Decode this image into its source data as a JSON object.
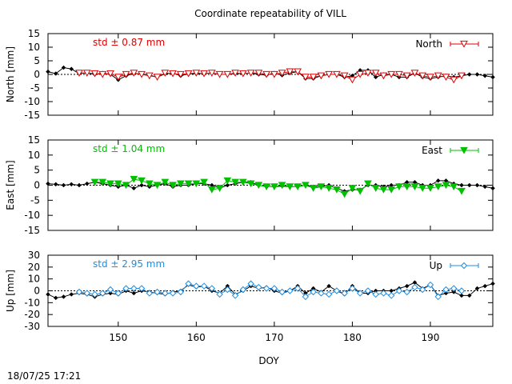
{
  "title": "Coordinate repeatability of VILL",
  "timestamp": "18/07/25 17:21",
  "xlabel": "DOY",
  "chart_data": [
    {
      "type": "line",
      "ylabel": "North [mm]",
      "ylim": [
        -15,
        15
      ],
      "yticks": [
        15,
        10,
        5,
        0,
        -5,
        -10,
        -15
      ],
      "xlim": [
        141,
        198
      ],
      "xticks": [
        150,
        160,
        170,
        180,
        190
      ],
      "tick_labels_x_visible": false,
      "annotation": "std ± 0.87 mm",
      "annotation_color": "#e00000",
      "legend": "North",
      "legend_position": "top-right",
      "series_color": "#e00000",
      "marker": "triangle-down-open",
      "baseline": {
        "x": [
          141,
          142,
          143,
          144,
          145,
          146,
          147,
          148,
          149,
          150,
          151,
          152,
          153,
          154,
          155,
          156,
          157,
          158,
          159,
          160,
          161,
          162,
          163,
          164,
          165,
          166,
          167,
          168,
          169,
          170,
          171,
          172,
          173,
          174,
          175,
          176,
          177,
          178,
          179,
          180,
          181,
          182,
          183,
          184,
          185,
          186,
          187,
          188,
          189,
          190,
          191,
          192,
          193,
          194,
          195,
          196,
          197,
          198
        ],
        "y": [
          1,
          0.3,
          2.5,
          2,
          0.3,
          0.5,
          0,
          0.5,
          0,
          -2,
          -0.5,
          0.3,
          0.2,
          -0.3,
          -1,
          0.2,
          0.5,
          -0.5,
          0.2,
          0.3,
          0.3,
          0.5,
          0,
          0,
          0.3,
          0.3,
          0.5,
          0,
          -0.3,
          0.5,
          -0.3,
          0.5,
          1,
          -1.5,
          -1.5,
          -0.5,
          0,
          0,
          -1,
          -0.5,
          1.5,
          1.5,
          -1,
          0,
          0,
          -1,
          -1,
          0.5,
          -1,
          -1.5,
          -1,
          -0.5,
          -1,
          -0.5,
          0,
          0,
          -0.5,
          -1
        ]
      },
      "series": [
        {
          "name": "North",
          "x": [
            145,
            146,
            147,
            148,
            149,
            150,
            151,
            152,
            153,
            154,
            155,
            156,
            157,
            158,
            159,
            160,
            161,
            162,
            163,
            164,
            165,
            166,
            167,
            168,
            169,
            170,
            171,
            172,
            173,
            174,
            175,
            176,
            177,
            178,
            179,
            180,
            181,
            182,
            183,
            184,
            185,
            186,
            187,
            188,
            189,
            190,
            191,
            192,
            193,
            194
          ],
          "y": [
            0.5,
            0.5,
            0.3,
            0,
            0.3,
            -1,
            0,
            0.5,
            0,
            -0.5,
            -1,
            0.5,
            0.3,
            0,
            0.3,
            0.5,
            0.3,
            0.5,
            0,
            0,
            0.5,
            0.3,
            0.5,
            0.5,
            0,
            0,
            0.5,
            1,
            1,
            -1,
            -1,
            -0.5,
            0,
            0,
            -0.5,
            -2,
            0,
            0.5,
            0.5,
            -0.5,
            0,
            0,
            -0.5,
            0.5,
            -0.5,
            -1,
            -0.5,
            -1,
            -2,
            -0.5
          ]
        }
      ]
    },
    {
      "type": "line",
      "ylabel": "East [mm]",
      "ylim": [
        -15,
        15
      ],
      "yticks": [
        15,
        10,
        5,
        0,
        -5,
        -10,
        -15
      ],
      "xlim": [
        141,
        198
      ],
      "xticks": [
        150,
        160,
        170,
        180,
        190
      ],
      "tick_labels_x_visible": false,
      "annotation": "std ± 1.04 mm",
      "annotation_color": "#00c000",
      "legend": "East",
      "legend_position": "top-right",
      "series_color": "#00c000",
      "marker": "triangle-down-filled",
      "baseline": {
        "x": [
          141,
          142,
          143,
          144,
          145,
          146,
          147,
          148,
          149,
          150,
          151,
          152,
          153,
          154,
          155,
          156,
          157,
          158,
          159,
          160,
          161,
          162,
          163,
          164,
          165,
          166,
          167,
          168,
          169,
          170,
          171,
          172,
          173,
          174,
          175,
          176,
          177,
          178,
          179,
          180,
          181,
          182,
          183,
          184,
          185,
          186,
          187,
          188,
          189,
          190,
          191,
          192,
          193,
          194,
          195,
          196,
          197,
          198
        ],
        "y": [
          0.5,
          0.3,
          0,
          0.3,
          0,
          0.5,
          1,
          0.5,
          0,
          -0.5,
          0,
          -1,
          0,
          -0.5,
          0,
          0.5,
          -0.5,
          0,
          0,
          0.5,
          0.5,
          0,
          -1,
          0,
          0.5,
          1,
          1,
          0,
          -0.5,
          -0.5,
          -0.3,
          -0.5,
          -0.5,
          0,
          -0.5,
          -0.5,
          0,
          -1,
          -2,
          -1.5,
          -1.5,
          0,
          0,
          -0.5,
          0,
          0,
          1,
          1,
          0,
          0,
          1.5,
          1.5,
          0.5,
          0,
          0,
          0,
          -0.5,
          -1
        ]
      },
      "series": [
        {
          "name": "East",
          "x": [
            147,
            148,
            149,
            150,
            151,
            152,
            153,
            154,
            155,
            156,
            157,
            158,
            159,
            160,
            161,
            162,
            163,
            164,
            165,
            166,
            167,
            168,
            169,
            170,
            171,
            172,
            173,
            174,
            175,
            176,
            177,
            178,
            179,
            180,
            181,
            182,
            183,
            184,
            185,
            186,
            187,
            188,
            189,
            190,
            191,
            192,
            193,
            194
          ],
          "y": [
            1,
            1,
            0.5,
            0.5,
            0,
            2,
            1.5,
            0.5,
            0,
            1,
            0,
            0.5,
            0.5,
            0.5,
            1,
            -1.5,
            -1,
            1.5,
            1,
            1,
            0.5,
            0,
            -0.5,
            -0.5,
            0,
            -0.5,
            -0.5,
            0,
            -1,
            -0.5,
            -1,
            -1.5,
            -3,
            -1,
            -2,
            0.5,
            -1,
            -1.5,
            -1.5,
            -0.5,
            -0.5,
            -0.5,
            -1,
            -1,
            -0.5,
            0,
            -0.5,
            -2
          ]
        }
      ]
    },
    {
      "type": "line",
      "ylabel": "Up [mm]",
      "ylim": [
        -30,
        30
      ],
      "yticks": [
        30,
        20,
        10,
        0,
        -10,
        -20,
        -30
      ],
      "xlim": [
        141,
        198
      ],
      "xticks": [
        150,
        160,
        170,
        180,
        190
      ],
      "tick_labels_x_visible": true,
      "annotation": "std ± 2.95 mm",
      "annotation_color": "#1e8ce0",
      "legend": "Up",
      "legend_position": "top-right",
      "series_color": "#1e8ce0",
      "marker": "diamond-open",
      "baseline": {
        "x": [
          141,
          142,
          143,
          144,
          145,
          146,
          147,
          148,
          149,
          150,
          151,
          152,
          153,
          154,
          155,
          156,
          157,
          158,
          159,
          160,
          161,
          162,
          163,
          164,
          165,
          166,
          167,
          168,
          169,
          170,
          171,
          172,
          173,
          174,
          175,
          176,
          177,
          178,
          179,
          180,
          181,
          182,
          183,
          184,
          185,
          186,
          187,
          188,
          189,
          190,
          191,
          192,
          193,
          194,
          195,
          196,
          197,
          198
        ],
        "y": [
          -3,
          -6,
          -5,
          -3,
          -2,
          -3,
          -5,
          -3,
          -2,
          -3,
          0,
          -2,
          0,
          -1,
          -2,
          -3,
          -1,
          0,
          5,
          3,
          4,
          0,
          -2,
          4,
          -3,
          0,
          4,
          2,
          3,
          0,
          -2,
          0,
          4,
          -2,
          2,
          -1,
          4,
          0,
          -3,
          4,
          -2,
          -2,
          0,
          0,
          0,
          2,
          4,
          7,
          2,
          5,
          -4,
          -2,
          -1,
          -4,
          -4,
          2,
          4,
          6
        ]
      },
      "series": [
        {
          "name": "Up",
          "x": [
            145,
            146,
            147,
            148,
            149,
            150,
            151,
            152,
            153,
            154,
            155,
            156,
            157,
            158,
            159,
            160,
            161,
            162,
            163,
            164,
            165,
            166,
            167,
            168,
            169,
            170,
            171,
            172,
            173,
            174,
            175,
            176,
            177,
            178,
            179,
            180,
            181,
            182,
            183,
            184,
            185,
            186,
            187,
            188,
            189,
            190,
            191,
            192,
            193,
            194
          ],
          "y": [
            -1,
            -2,
            -3,
            -2,
            1,
            -2,
            2,
            2,
            2,
            -2,
            -1,
            -2,
            -2,
            -1,
            6,
            4,
            4,
            2,
            -3,
            1,
            -4,
            1,
            6,
            3,
            2,
            2,
            -1,
            0,
            2,
            -5,
            -1,
            -2,
            -3,
            0,
            -2,
            2,
            -2,
            0,
            -3,
            -2,
            -4,
            0,
            -1,
            3,
            1,
            5,
            -5,
            1,
            2,
            0
          ]
        }
      ]
    }
  ]
}
